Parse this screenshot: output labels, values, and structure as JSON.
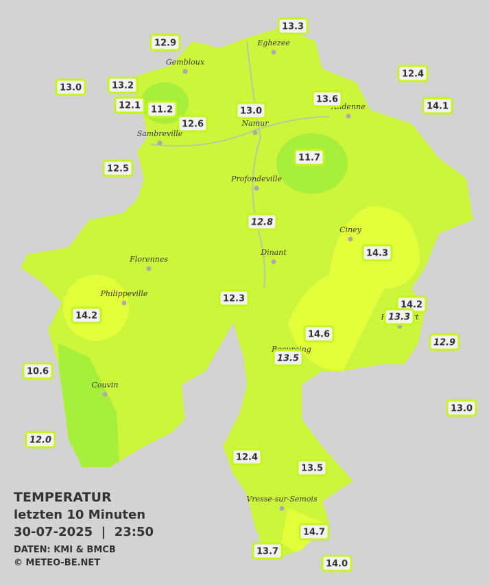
{
  "legend": {
    "title": "TEMPERATUR",
    "subtitle": "letzten 10 Minuten",
    "datetime": "30-07-2025  |  23:50",
    "source": "DATEN: KMI & BMCB",
    "copyright": "© METEO-BE.NET"
  },
  "cities": [
    "Eghezee",
    "Gembloux",
    "Andenne",
    "Namur",
    "Sambreville",
    "Profondeville",
    "Ciney",
    "Dinant",
    "Florennes",
    "Philippeville",
    "Rochefort",
    "Beauraing",
    "Couvin",
    "Vresse-sur-Semois"
  ],
  "stations": [
    {
      "value": "13.3"
    },
    {
      "value": "12.9"
    },
    {
      "value": "12.4"
    },
    {
      "value": "13.0"
    },
    {
      "value": "13.2"
    },
    {
      "value": "12.1"
    },
    {
      "value": "11.2"
    },
    {
      "value": "13.6"
    },
    {
      "value": "14.1"
    },
    {
      "value": "13.0"
    },
    {
      "value": "12.6"
    },
    {
      "value": "12.5"
    },
    {
      "value": "11.7"
    },
    {
      "value": "12.8",
      "italic": true
    },
    {
      "value": "14.3"
    },
    {
      "value": "12.3"
    },
    {
      "value": "14.2"
    },
    {
      "value": "14.2"
    },
    {
      "value": "14.6"
    },
    {
      "value": "12.9",
      "italic": true
    },
    {
      "value": "13.5",
      "italic": true
    },
    {
      "value": "10.6"
    },
    {
      "value": "13.0"
    },
    {
      "value": "12.0",
      "italic": true
    },
    {
      "value": "12.4"
    },
    {
      "value": "13.5"
    },
    {
      "value": "14.7"
    },
    {
      "value": "13.7"
    },
    {
      "value": "14.0"
    },
    {
      "value": "13.3",
      "italic": true
    }
  ]
}
